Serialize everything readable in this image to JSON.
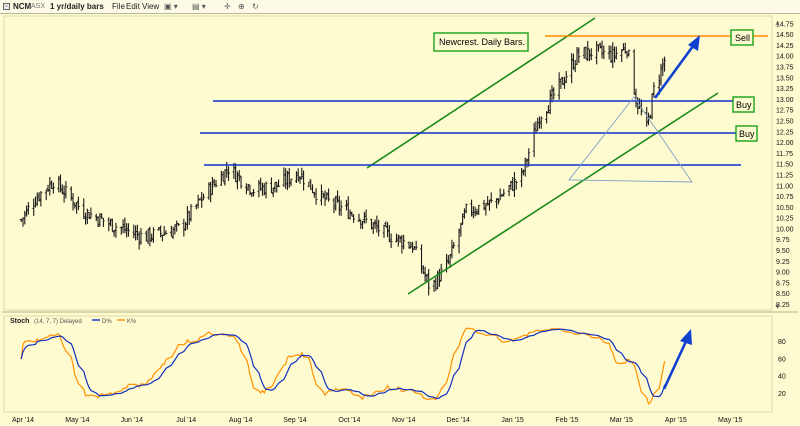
{
  "toolbar": {
    "symbol": "NCM",
    "exchange": "ASX",
    "timeframe": "1 yr/daily bars",
    "menus": [
      "File",
      "Edit",
      "View"
    ]
  },
  "colors": {
    "background": "#fffbd0",
    "price_bars": "#1a1a1a",
    "channel": "#1a8a1a",
    "support_lines": "#1030d0",
    "sell_line": "#ff8c00",
    "arrow": "#1040d0",
    "triangle": "#7f9fc6",
    "stoch_k": "#ff9000",
    "stoch_d": "#1030c0",
    "label_border": "#18a018"
  },
  "chart_data": [
    {
      "type": "ohlc",
      "title": "Newcrest.  Daily Bars.",
      "x_axis_labels": [
        "Apr '14",
        "May '14",
        "Jun '14",
        "Jul '14",
        "Aug '14",
        "Sep '14",
        "Oct '14",
        "Nov '14",
        "Dec '14",
        "Jan '15",
        "Feb '15",
        "Mar '15",
        "Apr '15",
        "May '15"
      ],
      "y_range": [
        8.25,
        14.85
      ],
      "y_ticks": [
        "14.75",
        "14.50",
        "14.25",
        "14.00",
        "13.75",
        "13.50",
        "13.25",
        "13.00",
        "12.75",
        "12.50",
        "12.25",
        "12.00",
        "11.75",
        "11.50",
        "11.25",
        "11.00",
        "10.75",
        "10.50",
        "10.25",
        "10.00",
        "9.75",
        "9.50",
        "9.25",
        "9.00",
        "8.75",
        "8.50",
        "8.25"
      ],
      "price_path_approx": {
        "dates": [
          "2014-03-31",
          "2014-04-08",
          "2014-04-18",
          "2014-05-05",
          "2014-05-20",
          "2014-06-08",
          "2014-06-28",
          "2014-07-12",
          "2014-07-25",
          "2014-08-08",
          "2014-08-22",
          "2014-09-02",
          "2014-09-15",
          "2014-10-05",
          "2014-10-20",
          "2014-11-05",
          "2014-11-15",
          "2014-11-25",
          "2014-12-05",
          "2014-12-20",
          "2015-01-05",
          "2015-01-15",
          "2015-01-25",
          "2015-02-05",
          "2015-02-15",
          "2015-02-25",
          "2015-03-05",
          "2015-03-10",
          "2015-03-16",
          "2015-03-20",
          "2015-03-26"
        ],
        "close": [
          10.2,
          10.7,
          11.1,
          10.4,
          10.1,
          9.8,
          10.0,
          10.8,
          11.4,
          10.9,
          11.0,
          11.3,
          10.7,
          10.3,
          9.9,
          9.6,
          8.6,
          9.2,
          10.4,
          10.6,
          11.2,
          12.6,
          13.2,
          14.0,
          14.1,
          14.0,
          14.2,
          13.0,
          12.3,
          13.2,
          13.9
        ]
      },
      "annotations": {
        "labels": [
          "Sell",
          "Buy",
          "Buy"
        ],
        "sell_level": 14.5,
        "buy_levels": [
          13.0,
          12.25
        ],
        "resistance_level": 11.5
      }
    },
    {
      "type": "line",
      "title": "Stoch",
      "params": "(14, 7, 7) Delayed",
      "series": [
        {
          "name": "D%",
          "color": "#1030c0"
        },
        {
          "name": "K%",
          "color": "#ff9000"
        }
      ],
      "y_range": [
        0,
        100
      ],
      "y_ticks": [
        "80",
        "60",
        "40",
        "20"
      ]
    }
  ]
}
